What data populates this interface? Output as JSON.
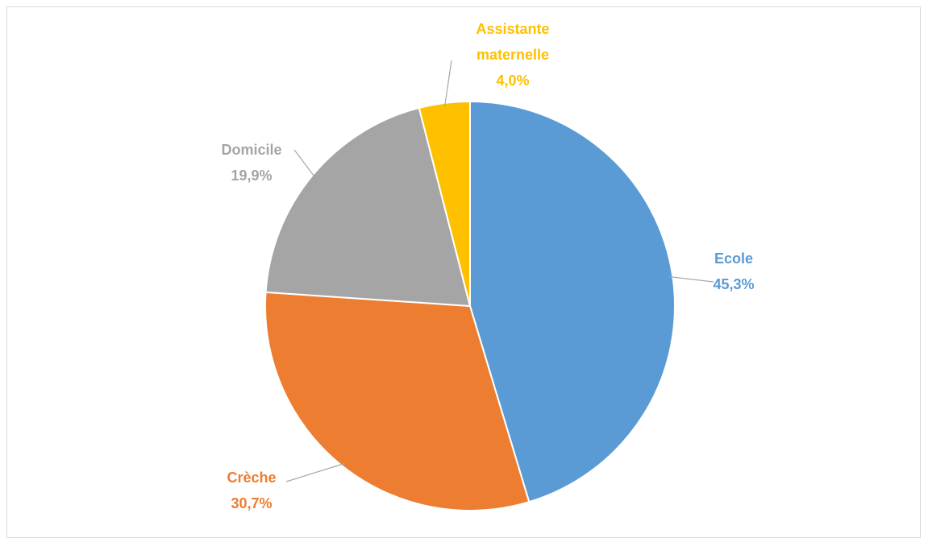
{
  "chart_data": {
    "type": "pie",
    "categories": [
      "Ecole",
      "Crèche",
      "Domicile",
      "Assistante maternelle"
    ],
    "values": [
      45.3,
      30.7,
      19.9,
      4.0
    ],
    "value_labels": [
      "45,3%",
      "30,7%",
      "19,9%",
      "4,0%"
    ],
    "colors": [
      "#5b9bd5",
      "#ed7d31",
      "#a5a5a5",
      "#ffc000"
    ]
  }
}
